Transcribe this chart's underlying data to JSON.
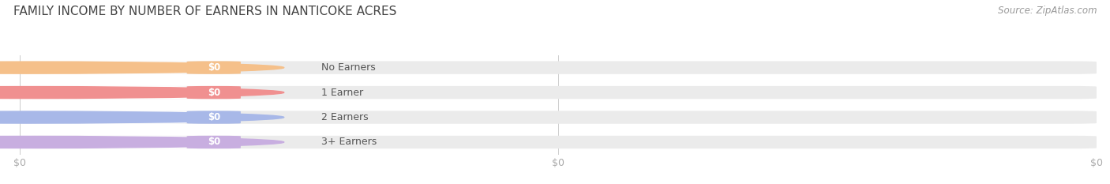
{
  "title": "FAMILY INCOME BY NUMBER OF EARNERS IN NANTICOKE ACRES",
  "source": "Source: ZipAtlas.com",
  "categories": [
    "No Earners",
    "1 Earner",
    "2 Earners",
    "3+ Earners"
  ],
  "values": [
    0,
    0,
    0,
    0
  ],
  "bar_colors": [
    "#f5c08a",
    "#f09090",
    "#a8b8e8",
    "#c8aee0"
  ],
  "label_bg_colors": [
    "#fdebd8",
    "#fad8d5",
    "#dce5f8",
    "#e8daf5"
  ],
  "bar_bg_color": "#ebebeb",
  "title_color": "#444444",
  "source_color": "#999999",
  "tick_color": "#aaaaaa",
  "title_fontsize": 11,
  "source_fontsize": 8.5,
  "label_fontsize": 9,
  "value_fontsize": 8.5,
  "background_color": "#ffffff"
}
